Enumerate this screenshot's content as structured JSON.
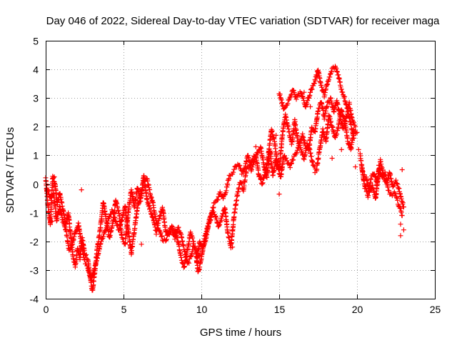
{
  "chart_data": {
    "type": "scatter",
    "title": "Day 046 of 2022, Sidereal Day-to-day VTEC variation (SDTVAR) for receiver maga",
    "xlabel": "GPS time / hours",
    "ylabel": "SDTVAR / TECUs",
    "xlim": [
      0,
      25
    ],
    "ylim": [
      -4,
      5
    ],
    "xticks": [
      "0",
      "5",
      "10",
      "15",
      "20",
      "25"
    ],
    "yticks": [
      "-4",
      "-3",
      "-2",
      "-1",
      "0",
      "1",
      "2",
      "3",
      "4",
      "5"
    ],
    "grid": true,
    "marker": "+",
    "series": [
      {
        "name": "SDTVAR",
        "color": "#ff0000",
        "tracks": [
          [
            [
              0.0,
              0.2
            ],
            [
              0.15,
              -0.8
            ],
            [
              0.3,
              -1.4
            ],
            [
              0.45,
              0.3
            ],
            [
              0.6,
              0.0
            ],
            [
              0.75,
              -0.7
            ],
            [
              0.9,
              -0.3
            ],
            [
              1.0,
              -0.6
            ],
            [
              1.15,
              -1.0
            ],
            [
              1.3,
              -1.4
            ],
            [
              1.45,
              -1.0
            ],
            [
              1.6,
              -1.8
            ],
            [
              1.75,
              -2.5
            ],
            [
              1.9,
              -2.9
            ],
            [
              2.05,
              -2.2
            ],
            [
              2.2,
              -2.6
            ],
            [
              2.35,
              -1.9
            ],
            [
              2.5,
              -2.4
            ],
            [
              2.7,
              -2.6
            ],
            [
              2.85,
              -3.2
            ],
            [
              3.0,
              -3.75
            ],
            [
              3.15,
              -3.1
            ],
            [
              3.3,
              -2.3
            ],
            [
              3.5,
              -1.6
            ],
            [
              3.7,
              -0.6
            ],
            [
              3.9,
              -1.3
            ],
            [
              4.1,
              -1.9
            ],
            [
              4.3,
              -1.4
            ],
            [
              4.5,
              -0.6
            ],
            [
              4.7,
              -1.0
            ],
            [
              4.9,
              -1.9
            ],
            [
              5.1,
              -2.1
            ],
            [
              5.3,
              -1.0
            ],
            [
              5.5,
              -0.2
            ],
            [
              5.7,
              -0.8
            ],
            [
              5.9,
              -0.1
            ],
            [
              6.1,
              -0.6
            ],
            [
              6.3,
              0.3
            ],
            [
              6.5,
              -0.5
            ],
            [
              6.7,
              -0.9
            ],
            [
              6.9,
              -1.2
            ],
            [
              7.1,
              -1.7
            ],
            [
              7.3,
              -1.2
            ],
            [
              7.5,
              -0.8
            ],
            [
              7.7,
              -1.6
            ],
            [
              7.9,
              -1.8
            ],
            [
              8.1,
              -1.6
            ],
            [
              8.3,
              -1.9
            ],
            [
              8.5,
              -1.5
            ],
            [
              8.7,
              -1.8
            ],
            [
              8.9,
              -2.3
            ],
            [
              9.1,
              -2.8
            ],
            [
              9.3,
              -2.6
            ],
            [
              9.5,
              -2.1
            ],
            [
              9.7,
              -2.4
            ],
            [
              9.9,
              -2.5
            ]
          ],
          [
            [
              0.1,
              -0.2
            ],
            [
              0.3,
              -0.5
            ],
            [
              0.5,
              -0.3
            ],
            [
              0.7,
              -1.3
            ],
            [
              0.9,
              -0.8
            ],
            [
              1.1,
              -1.3
            ],
            [
              1.3,
              -1.6
            ],
            [
              1.5,
              -2.3
            ],
            [
              1.7,
              -2.1
            ],
            [
              1.9,
              -1.7
            ],
            [
              2.1,
              -1.4
            ],
            [
              2.3,
              -2.1
            ],
            [
              2.5,
              -2.7
            ],
            [
              2.7,
              -2.9
            ],
            [
              2.9,
              -3.4
            ],
            [
              3.1,
              -3.0
            ],
            [
              3.3,
              -2.6
            ],
            [
              3.5,
              -2.1
            ],
            [
              3.7,
              -1.8
            ],
            [
              3.9,
              -1.5
            ],
            [
              4.1,
              -1.1
            ],
            [
              4.3,
              -0.9
            ],
            [
              4.5,
              -1.3
            ],
            [
              4.7,
              -1.6
            ],
            [
              4.9,
              -1.2
            ],
            [
              5.1,
              -0.8
            ],
            [
              5.3,
              -1.6
            ],
            [
              5.5,
              -2.4
            ],
            [
              5.7,
              -1.6
            ],
            [
              5.9,
              -0.8
            ],
            [
              6.1,
              -0.4
            ],
            [
              6.3,
              0.1
            ],
            [
              6.5,
              0.2
            ],
            [
              6.7,
              -0.3
            ],
            [
              6.9,
              -0.7
            ],
            [
              7.1,
              -1.3
            ],
            [
              7.3,
              -1.6
            ],
            [
              7.5,
              -1.9
            ],
            [
              7.7,
              -2.0
            ],
            [
              7.9,
              -1.7
            ],
            [
              8.1,
              -1.5
            ],
            [
              8.3,
              -1.6
            ],
            [
              8.5,
              -2.0
            ],
            [
              8.7,
              -2.6
            ],
            [
              8.9,
              -2.9
            ],
            [
              9.1,
              -2.3
            ],
            [
              9.3,
              -1.7
            ],
            [
              9.5,
              -2.0
            ]
          ],
          [
            [
              9.6,
              -2.2
            ],
            [
              9.8,
              -3.1
            ],
            [
              10.0,
              -2.6
            ],
            [
              10.2,
              -1.9
            ],
            [
              10.4,
              -1.5
            ],
            [
              10.6,
              -1.2
            ],
            [
              10.8,
              -0.7
            ],
            [
              11.0,
              -0.6
            ],
            [
              11.2,
              -0.3
            ],
            [
              11.4,
              -0.5
            ],
            [
              11.6,
              -0.2
            ],
            [
              11.8,
              0.3
            ],
            [
              12.0,
              0.4
            ],
            [
              12.2,
              0.6
            ],
            [
              12.4,
              0.7
            ],
            [
              12.6,
              0.4
            ],
            [
              12.8,
              0.6
            ],
            [
              13.0,
              1.0
            ],
            [
              13.2,
              0.5
            ],
            [
              13.4,
              0.8
            ],
            [
              13.6,
              1.1
            ],
            [
              13.8,
              1.3
            ],
            [
              14.0,
              0.7
            ],
            [
              14.2,
              0.2
            ],
            [
              14.4,
              1.2
            ],
            [
              14.6,
              0.3
            ],
            [
              14.8,
              0.9
            ],
            [
              15.0,
              0.5
            ],
            [
              15.2,
              1.7
            ],
            [
              15.4,
              2.4
            ],
            [
              15.6,
              1.9
            ],
            [
              15.8,
              1.4
            ],
            [
              16.0,
              2.2
            ],
            [
              16.2,
              1.5
            ],
            [
              16.4,
              1.2
            ],
            [
              16.6,
              0.9
            ],
            [
              16.8,
              1.4
            ],
            [
              17.0,
              1.1
            ],
            [
              17.2,
              0.6
            ],
            [
              17.4,
              0.5
            ],
            [
              17.6,
              1.2
            ],
            [
              17.8,
              1.9
            ],
            [
              18.0,
              1.5
            ],
            [
              18.2,
              2.4
            ],
            [
              18.4,
              2.0
            ],
            [
              18.6,
              1.6
            ],
            [
              18.8,
              2.0
            ],
            [
              19.0,
              2.6
            ],
            [
              19.2,
              2.2
            ],
            [
              19.4,
              1.5
            ],
            [
              19.6,
              1.2
            ],
            [
              19.8,
              1.9
            ],
            [
              20.0,
              1.8
            ]
          ],
          [
            [
              9.7,
              -2.7
            ],
            [
              9.9,
              -2.0
            ],
            [
              10.1,
              -2.3
            ],
            [
              10.3,
              -1.9
            ],
            [
              10.5,
              -1.3
            ],
            [
              10.7,
              -0.9
            ],
            [
              10.9,
              -1.1
            ],
            [
              11.1,
              -1.5
            ],
            [
              11.3,
              -1.2
            ],
            [
              11.5,
              -0.8
            ],
            [
              11.7,
              -1.7
            ],
            [
              11.9,
              -2.2
            ],
            [
              12.1,
              -1.1
            ],
            [
              12.3,
              -0.4
            ],
            [
              12.5,
              0.1
            ],
            [
              12.7,
              -0.2
            ],
            [
              12.9,
              0.5
            ],
            [
              13.1,
              0.6
            ],
            [
              13.3,
              0.9
            ],
            [
              13.5,
              1.0
            ],
            [
              13.7,
              0.3
            ],
            [
              13.9,
              0.0
            ],
            [
              14.1,
              0.4
            ],
            [
              14.3,
              1.0
            ],
            [
              14.5,
              1.9
            ],
            [
              14.7,
              1.5
            ],
            [
              14.9,
              0.6
            ],
            [
              15.1,
              0.2
            ],
            [
              15.3,
              1.0
            ],
            [
              15.5,
              0.8
            ],
            [
              15.7,
              0.6
            ],
            [
              15.9,
              0.9
            ],
            [
              16.1,
              1.1
            ],
            [
              16.3,
              1.4
            ],
            [
              16.5,
              1.7
            ],
            [
              16.7,
              1.3
            ],
            [
              16.9,
              1.2
            ],
            [
              17.1,
              2.0
            ],
            [
              17.3,
              1.8
            ],
            [
              17.5,
              2.6
            ],
            [
              17.7,
              2.9
            ],
            [
              17.9,
              2.3
            ],
            [
              18.1,
              2.8
            ],
            [
              18.3,
              3.0
            ],
            [
              18.5,
              2.5
            ],
            [
              18.7,
              2.9
            ],
            [
              18.9,
              2.4
            ],
            [
              19.1,
              1.9
            ],
            [
              19.3,
              2.3
            ],
            [
              19.5,
              2.8
            ],
            [
              19.7,
              2.2
            ],
            [
              19.9,
              2.0
            ]
          ],
          [
            [
              15.0,
              3.2
            ],
            [
              15.3,
              2.6
            ],
            [
              15.6,
              2.9
            ],
            [
              15.9,
              3.3
            ],
            [
              16.1,
              3.0
            ],
            [
              16.4,
              3.2
            ],
            [
              16.7,
              2.7
            ],
            [
              17.0,
              3.2
            ],
            [
              17.3,
              3.6
            ],
            [
              17.5,
              4.0
            ],
            [
              17.7,
              3.4
            ],
            [
              17.9,
              3.1
            ],
            [
              18.1,
              3.5
            ],
            [
              18.4,
              4.0
            ],
            [
              18.6,
              4.1
            ],
            [
              18.8,
              3.8
            ],
            [
              19.0,
              3.3
            ],
            [
              19.2,
              3.0
            ],
            [
              19.4,
              2.6
            ],
            [
              19.6,
              2.1
            ],
            [
              19.8,
              1.6
            ]
          ],
          [
            [
              20.2,
              1.0
            ],
            [
              20.4,
              0.3
            ],
            [
              20.6,
              0.2
            ],
            [
              20.8,
              -0.3
            ],
            [
              21.0,
              -0.1
            ],
            [
              21.2,
              -0.5
            ],
            [
              21.4,
              0.6
            ],
            [
              21.6,
              0.2
            ],
            [
              21.8,
              0.4
            ],
            [
              22.0,
              -0.2
            ],
            [
              22.2,
              -0.4
            ],
            [
              22.4,
              -0.3
            ],
            [
              22.6,
              -0.6
            ],
            [
              22.8,
              -0.9
            ],
            [
              22.9,
              -1.1
            ]
          ],
          [
            [
              20.3,
              0.6
            ],
            [
              20.5,
              -0.1
            ],
            [
              20.7,
              -0.4
            ],
            [
              20.9,
              0.2
            ],
            [
              21.1,
              0.4
            ],
            [
              21.3,
              0.0
            ],
            [
              21.5,
              0.8
            ],
            [
              21.7,
              0.3
            ],
            [
              21.9,
              0.0
            ],
            [
              22.1,
              0.4
            ],
            [
              22.3,
              -0.1
            ],
            [
              22.5,
              0.1
            ],
            [
              22.7,
              -0.2
            ],
            [
              22.9,
              -0.6
            ],
            [
              23.0,
              -0.8
            ]
          ]
        ],
        "scattered": [
          [
            0.4,
            -1.3
          ],
          [
            0.55,
            0.25
          ],
          [
            2.3,
            -0.2
          ],
          [
            5.6,
            -0.35
          ],
          [
            6.15,
            -2.1
          ],
          [
            8.3,
            -1.8
          ],
          [
            12.0,
            -2.2
          ],
          [
            13.5,
            1.3
          ],
          [
            14.5,
            1.9
          ],
          [
            14.8,
            1.7
          ],
          [
            15.0,
            -0.35
          ],
          [
            16.6,
            3.2
          ],
          [
            17.0,
            2.7
          ],
          [
            17.3,
            0.4
          ],
          [
            18.4,
            0.9
          ],
          [
            19.0,
            1.2
          ],
          [
            19.9,
            0.6
          ],
          [
            20.1,
            1.2
          ],
          [
            22.8,
            -1.4
          ],
          [
            22.8,
            -1.8
          ],
          [
            22.9,
            0.5
          ],
          [
            23.0,
            -1.6
          ]
        ]
      }
    ]
  }
}
